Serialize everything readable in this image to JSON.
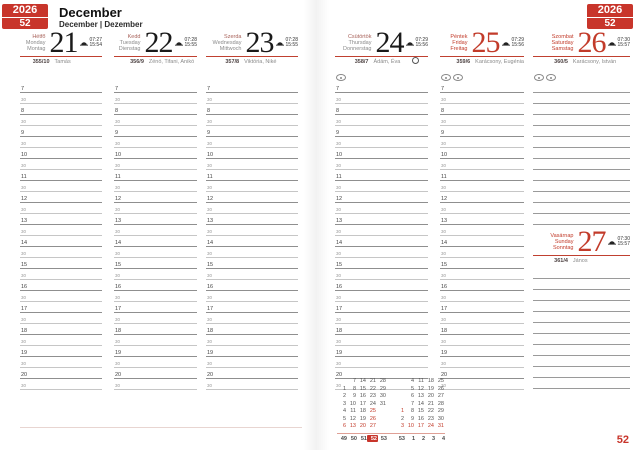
{
  "badge": {
    "year": "2026",
    "week": "52"
  },
  "header": {
    "title": "December",
    "subtitle": "December | Dezember"
  },
  "page_number": "52",
  "colors": {
    "accent": "#c8352b",
    "red_day": "#c23b2a"
  },
  "schedule": {
    "hour_labels": [
      "7",
      "8",
      "9",
      "10",
      "11",
      "12",
      "13",
      "14",
      "15",
      "16",
      "17",
      "18",
      "19",
      "20"
    ],
    "half_label": "30"
  },
  "days": [
    {
      "id": "mon",
      "hu": "Hétfő",
      "en": "Monday",
      "de": "Montag",
      "number": "21",
      "sunrise": "07:27",
      "sunset": "15:54",
      "doy": "355/10",
      "name_day": "Tamás",
      "red": false,
      "markers": 0,
      "moon": false
    },
    {
      "id": "tue",
      "hu": "Kedd",
      "en": "Tuesday",
      "de": "Dienstag",
      "number": "22",
      "sunrise": "07:28",
      "sunset": "15:55",
      "doy": "356/9",
      "name_day": "Zénó, Tifani, Anikó",
      "red": false,
      "markers": 0,
      "moon": false
    },
    {
      "id": "wed",
      "hu": "Szerda",
      "en": "Wednesday",
      "de": "Mittwoch",
      "number": "23",
      "sunrise": "07:28",
      "sunset": "15:55",
      "doy": "357/8",
      "name_day": "Viktória, Niké",
      "red": false,
      "markers": 0,
      "moon": false
    },
    {
      "id": "thu",
      "hu": "Csütörtök",
      "en": "Thursday",
      "de": "Donnerstag",
      "number": "24",
      "sunrise": "07:29",
      "sunset": "15:56",
      "doy": "358/7",
      "name_day": "Ádám, Éva",
      "red": false,
      "markers": 1,
      "moon": true
    },
    {
      "id": "fri",
      "hu": "Péntek",
      "en": "Friday",
      "de": "Freitag",
      "number": "25",
      "sunrise": "07:29",
      "sunset": "15:56",
      "doy": "359/6",
      "name_day": "Karácsony, Eugénia",
      "red": true,
      "markers": 2,
      "moon": false
    },
    {
      "id": "sat",
      "hu": "Szombat",
      "en": "Saturday",
      "de": "Samstag",
      "number": "26",
      "sunrise": "07:30",
      "sunset": "15:57",
      "doy": "360/5",
      "name_day": "Karácsony, István",
      "red": true,
      "markers": 2,
      "moon": false
    },
    {
      "id": "sun",
      "hu": "Vasárnap",
      "en": "Sunday",
      "de": "Sonntag",
      "number": "27",
      "sunrise": "07:30",
      "sunset": "15:57",
      "doy": "361/4",
      "name_day": "János",
      "red": true,
      "markers": 0,
      "moon": false
    }
  ],
  "mini_calendar": {
    "months": [
      {
        "rows": [
          [
            "",
            "7",
            "14",
            "21",
            "28"
          ],
          [
            "1",
            "8",
            "15",
            "22",
            "29"
          ],
          [
            "2",
            "9",
            "16",
            "23",
            "30"
          ],
          [
            "3",
            "10",
            "17",
            "24",
            "31"
          ],
          [
            "4",
            "11",
            "18",
            "25",
            ""
          ],
          [
            "5",
            "12",
            "19",
            "26",
            ""
          ],
          [
            "6",
            "13",
            "20",
            "27",
            ""
          ]
        ],
        "red_days": [
          "6",
          "13",
          "20",
          "25",
          "26",
          "27"
        ]
      },
      {
        "rows": [
          [
            "",
            "4",
            "11",
            "18",
            "25"
          ],
          [
            "",
            "5",
            "12",
            "19",
            "26"
          ],
          [
            "",
            "6",
            "13",
            "20",
            "27"
          ],
          [
            "",
            "7",
            "14",
            "21",
            "28"
          ],
          [
            "1",
            "8",
            "15",
            "22",
            "29"
          ],
          [
            "2",
            "9",
            "16",
            "23",
            "30"
          ],
          [
            "3",
            "10",
            "17",
            "24",
            "31"
          ]
        ],
        "red_days": [
          "1",
          "3",
          "10",
          "17",
          "24",
          "31"
        ]
      }
    ],
    "week_numbers": [
      "49",
      "50",
      "51",
      "52",
      "53",
      "53",
      "1",
      "2",
      "3",
      "4"
    ],
    "current_week": "52"
  }
}
